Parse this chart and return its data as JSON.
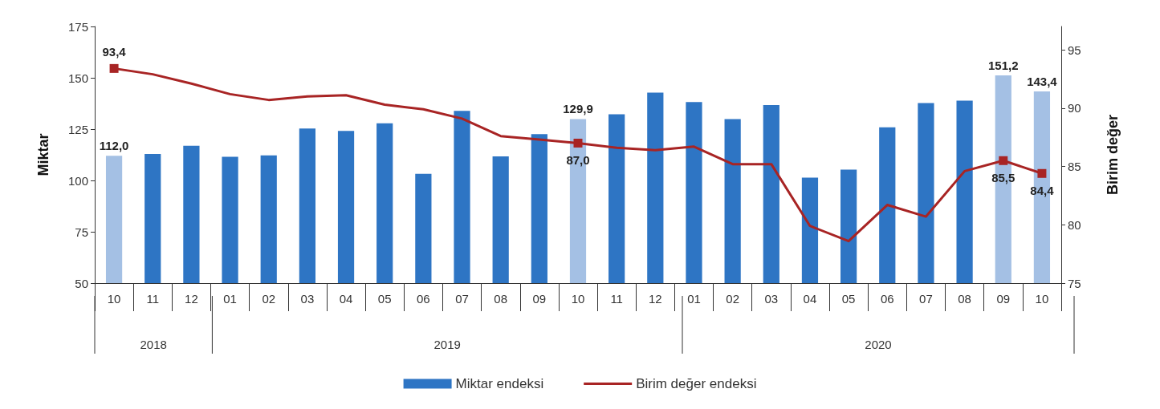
{
  "chart_data": {
    "type": "bar",
    "categories": [
      "10",
      "11",
      "12",
      "01",
      "02",
      "03",
      "04",
      "05",
      "06",
      "07",
      "08",
      "09",
      "10",
      "11",
      "12",
      "01",
      "02",
      "03",
      "04",
      "05",
      "06",
      "07",
      "08",
      "09",
      "10"
    ],
    "annotations": [
      "2018",
      "2019",
      "2020"
    ],
    "ylabel": "Miktar",
    "y2label": "Birim değer",
    "series": [
      {
        "name": "Miktar endeksi",
        "color": "#2e75c4",
        "colors": [
          "#a4c0e4",
          "#2e75c4",
          "#2e75c4",
          "#2e75c4",
          "#2e75c4",
          "#2e75c4",
          "#2e75c4",
          "#2e75c4",
          "#2e75c4",
          "#2e75c4",
          "#2e75c4",
          "#2e75c4",
          "#a4c0e4",
          "#2e75c4",
          "#2e75c4",
          "#2e75c4",
          "#2e75c4",
          "#2e75c4",
          "#2e75c4",
          "#2e75c4",
          "#2e75c4",
          "#2e75c4",
          "#2e75c4",
          "#a4c0e4",
          "#a4c0e4"
        ],
        "values": [
          112.0,
          112.9,
          116.9,
          111.5,
          112.2,
          125.3,
          124.1,
          127.8,
          103.2,
          133.9,
          111.7,
          122.6,
          129.9,
          132.2,
          142.8,
          138.2,
          129.9,
          136.7,
          101.4,
          105.3,
          125.9,
          137.7,
          138.9,
          151.2,
          143.4
        ],
        "value_labels": [
          "112,0",
          null,
          null,
          null,
          null,
          null,
          null,
          null,
          null,
          null,
          null,
          null,
          "129,9",
          null,
          null,
          null,
          null,
          null,
          null,
          null,
          null,
          null,
          null,
          "151,2",
          "143,4"
        ]
      },
      {
        "name": "Birim değer endeksi",
        "type": "line",
        "axis": "y2",
        "color": "#a82424",
        "line_style": "solid",
        "values": [
          93.4,
          92.9,
          92.1,
          91.2,
          90.7,
          91.0,
          91.1,
          90.3,
          89.9,
          89.1,
          87.6,
          87.3,
          87.0,
          86.6,
          86.4,
          86.7,
          85.2,
          85.2,
          79.9,
          78.6,
          81.7,
          80.7,
          84.6,
          85.5,
          84.4
        ],
        "value_labels": [
          "93,4",
          null,
          null,
          null,
          null,
          null,
          null,
          null,
          null,
          null,
          null,
          null,
          "87,0",
          null,
          null,
          null,
          null,
          null,
          null,
          null,
          null,
          null,
          null,
          "85,5",
          "84,4"
        ]
      }
    ],
    "ylim": [
      50,
      175
    ],
    "yticks": [
      50,
      75,
      100,
      125,
      150,
      175
    ],
    "y2lim": [
      75,
      97
    ],
    "y2ticks": [
      75,
      80,
      85,
      90,
      95
    ],
    "grid": false,
    "legend": "bottom"
  }
}
